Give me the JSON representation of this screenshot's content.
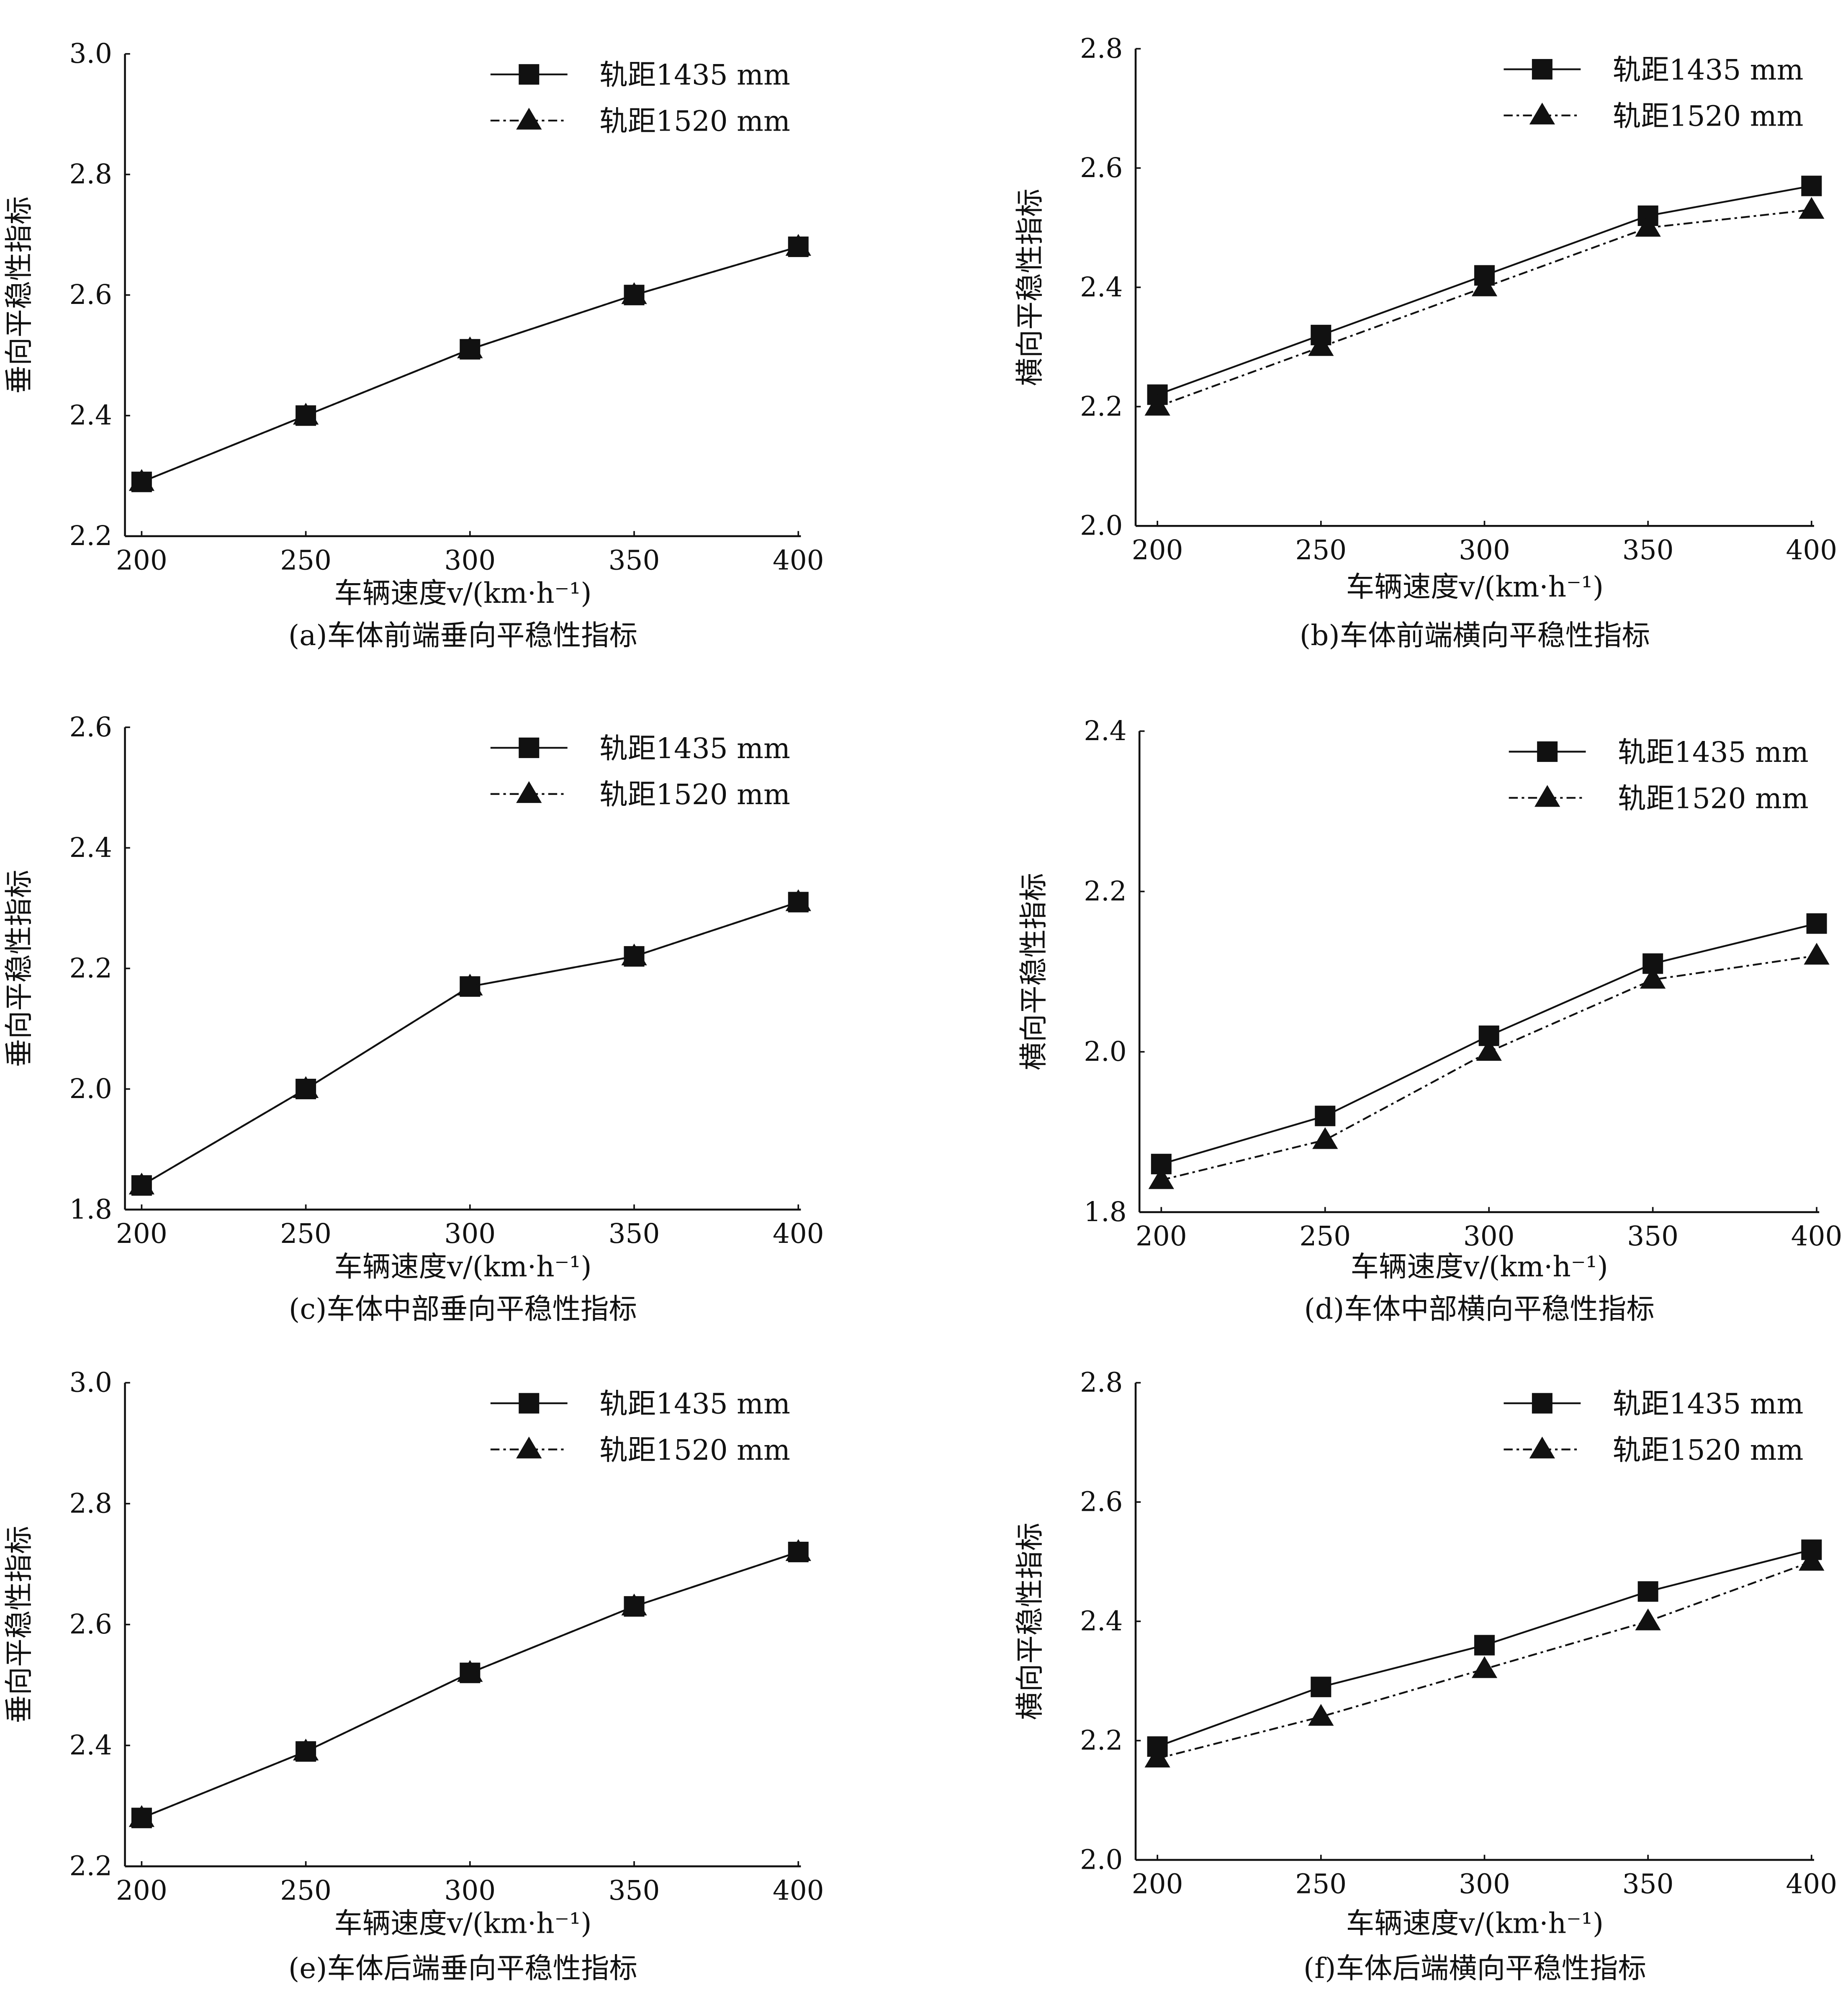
{
  "chart_data": [
    {
      "type": "line",
      "id": "a",
      "caption": "(a)车体前端垂向平稳性指标",
      "xlabel": "车辆速度v/(km·h⁻¹)",
      "ylabel": "垂向平稳性指标",
      "x": [
        200,
        250,
        300,
        350,
        400
      ],
      "xticks": [
        "200",
        "250",
        "300",
        "350",
        "400"
      ],
      "ylim": [
        2.2,
        3.0
      ],
      "yticks": [
        "2.2",
        "2.4",
        "2.6",
        "2.8",
        "3.0"
      ],
      "series": [
        {
          "name": "轨距1435 mm",
          "marker": "square",
          "style": "solid",
          "values": [
            2.29,
            2.4,
            2.51,
            2.6,
            2.68
          ]
        },
        {
          "name": "轨距1520 mm",
          "marker": "triangle",
          "style": "dashdot",
          "values": [
            2.29,
            2.4,
            2.51,
            2.6,
            2.68
          ]
        }
      ],
      "legend": "top-right"
    },
    {
      "type": "line",
      "id": "b",
      "caption": "(b)车体前端横向平稳性指标",
      "xlabel": "车辆速度v/(km·h⁻¹)",
      "ylabel": "横向平稳性指标",
      "x": [
        200,
        250,
        300,
        350,
        400
      ],
      "xticks": [
        "200",
        "250",
        "300",
        "350",
        "400"
      ],
      "ylim": [
        2.0,
        2.8
      ],
      "yticks": [
        "2.0",
        "2.2",
        "2.4",
        "2.6",
        "2.8"
      ],
      "series": [
        {
          "name": "轨距1435 mm",
          "marker": "square",
          "style": "solid",
          "values": [
            2.22,
            2.32,
            2.42,
            2.52,
            2.57
          ]
        },
        {
          "name": "轨距1520 mm",
          "marker": "triangle",
          "style": "dashdot",
          "values": [
            2.2,
            2.3,
            2.4,
            2.5,
            2.53
          ]
        }
      ],
      "legend": "top-right"
    },
    {
      "type": "line",
      "id": "c",
      "caption": "(c)车体中部垂向平稳性指标",
      "xlabel": "车辆速度v/(km·h⁻¹)",
      "ylabel": "垂向平稳性指标",
      "x": [
        200,
        250,
        300,
        350,
        400
      ],
      "xticks": [
        "200",
        "250",
        "300",
        "350",
        "400"
      ],
      "ylim": [
        1.8,
        2.6
      ],
      "yticks": [
        "1.8",
        "2.0",
        "2.2",
        "2.4",
        "2.6"
      ],
      "series": [
        {
          "name": "轨距1435 mm",
          "marker": "square",
          "style": "solid",
          "values": [
            1.84,
            2.0,
            2.17,
            2.22,
            2.31
          ]
        },
        {
          "name": "轨距1520 mm",
          "marker": "triangle",
          "style": "dashdot",
          "values": [
            1.84,
            2.0,
            2.17,
            2.22,
            2.31
          ]
        }
      ],
      "legend": "top-right"
    },
    {
      "type": "line",
      "id": "d",
      "caption": "(d)车体中部横向平稳性指标",
      "xlabel": "车辆速度v/(km·h⁻¹)",
      "ylabel": "横向平稳性指标",
      "x": [
        200,
        250,
        300,
        350,
        400
      ],
      "xticks": [
        "200",
        "250",
        "300",
        "350",
        "400"
      ],
      "ylim": [
        1.8,
        2.4
      ],
      "yticks": [
        "1.8",
        "2.0",
        "2.2",
        "2.4"
      ],
      "series": [
        {
          "name": "轨距1435 mm",
          "marker": "square",
          "style": "solid",
          "values": [
            1.86,
            1.92,
            2.02,
            2.11,
            2.16
          ]
        },
        {
          "name": "轨距1520 mm",
          "marker": "triangle",
          "style": "dashdot",
          "values": [
            1.84,
            1.89,
            2.0,
            2.09,
            2.12
          ]
        }
      ],
      "legend": "top-right"
    },
    {
      "type": "line",
      "id": "e",
      "caption": "(e)车体后端垂向平稳性指标",
      "xlabel": "车辆速度v/(km·h⁻¹)",
      "ylabel": "垂向平稳性指标",
      "x": [
        200,
        250,
        300,
        350,
        400
      ],
      "xticks": [
        "200",
        "250",
        "300",
        "350",
        "400"
      ],
      "ylim": [
        2.2,
        3.0
      ],
      "yticks": [
        "2.2",
        "2.4",
        "2.6",
        "2.8",
        "3.0"
      ],
      "series": [
        {
          "name": "轨距1435 mm",
          "marker": "square",
          "style": "solid",
          "values": [
            2.28,
            2.39,
            2.52,
            2.63,
            2.72
          ]
        },
        {
          "name": "轨距1520 mm",
          "marker": "triangle",
          "style": "dashdot",
          "values": [
            2.28,
            2.39,
            2.52,
            2.63,
            2.72
          ]
        }
      ],
      "legend": "top-right"
    },
    {
      "type": "line",
      "id": "f",
      "caption": "(f)车体后端横向平稳性指标",
      "xlabel": "车辆速度v/(km·h⁻¹)",
      "ylabel": "横向平稳性指标",
      "x": [
        200,
        250,
        300,
        350,
        400
      ],
      "xticks": [
        "200",
        "250",
        "300",
        "350",
        "400"
      ],
      "ylim": [
        2.0,
        2.8
      ],
      "yticks": [
        "2.0",
        "2.2",
        "2.4",
        "2.6",
        "2.8"
      ],
      "series": [
        {
          "name": "轨距1435 mm",
          "marker": "square",
          "style": "solid",
          "values": [
            2.19,
            2.29,
            2.36,
            2.45,
            2.52
          ]
        },
        {
          "name": "轨距1520 mm",
          "marker": "triangle",
          "style": "dashdot",
          "values": [
            2.17,
            2.24,
            2.32,
            2.4,
            2.5
          ]
        }
      ],
      "legend": "top-right"
    }
  ]
}
